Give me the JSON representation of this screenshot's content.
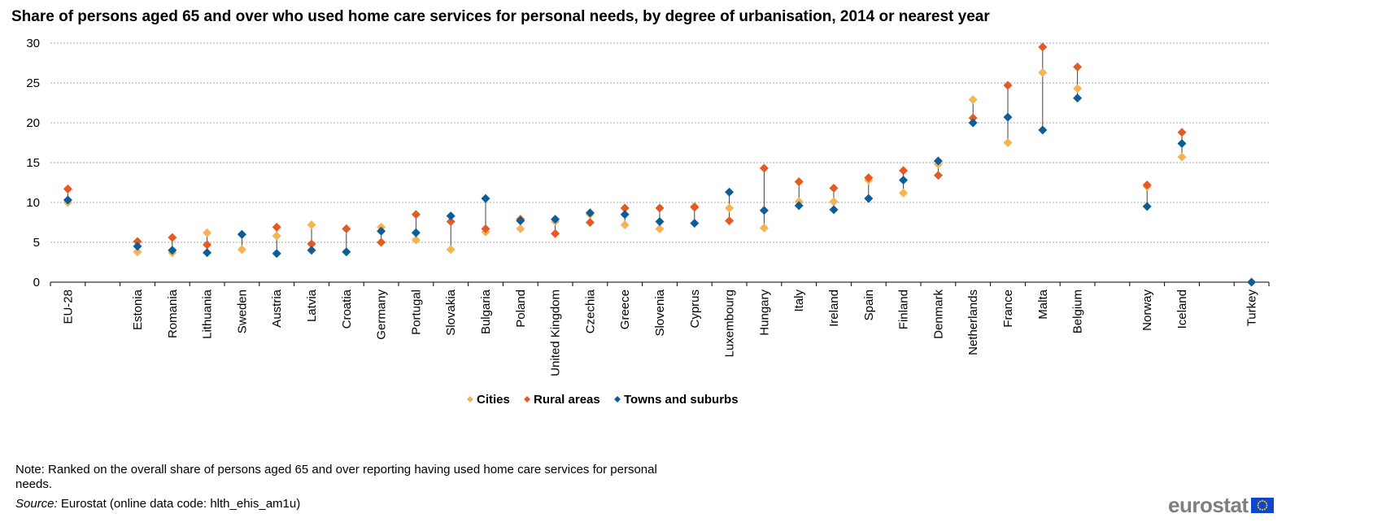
{
  "chart_data": {
    "type": "scatter",
    "title": "Share of persons aged 65 and over who used home care services for personal needs, by degree of urbanisation, 2014 or nearest year",
    "ylim": [
      0,
      30
    ],
    "yticks": [
      0,
      5,
      10,
      15,
      20,
      25,
      30
    ],
    "grid": true,
    "legend_position": "bottom",
    "categories": [
      "EU-28",
      "Estonia",
      "Romania",
      "Lithuania",
      "Sweden",
      "Austria",
      "Latvia",
      "Croatia",
      "Germany",
      "Portugal",
      "Slovakia",
      "Bulgaria",
      "Poland",
      "United Kingdom",
      "Czechia",
      "Greece",
      "Slovenia",
      "Cyprus",
      "Luxembourg",
      "Hungary",
      "Italy",
      "Ireland",
      "Spain",
      "Finland",
      "Denmark",
      "Netherlands",
      "France",
      "Malta",
      "Belgium",
      "Norway",
      "Iceland",
      "Turkey"
    ],
    "groups": [
      [
        0
      ],
      [
        1,
        28
      ],
      [
        29,
        30
      ],
      [
        31
      ]
    ],
    "series": [
      {
        "name": "Cities",
        "color": "#f5b354",
        "values": [
          10.0,
          3.8,
          3.7,
          6.2,
          4.1,
          5.8,
          7.2,
          6.7,
          6.9,
          5.3,
          4.1,
          6.3,
          6.7,
          7.6,
          8.5,
          7.2,
          6.7,
          9.5,
          9.3,
          6.8,
          10.1,
          10.1,
          12.8,
          11.2,
          14.8,
          22.9,
          17.5,
          26.3,
          24.3,
          12.0,
          15.7,
          null
        ]
      },
      {
        "name": "Rural areas",
        "color": "#e35a24",
        "values": [
          11.7,
          5.1,
          5.6,
          4.7,
          6.0,
          6.9,
          4.8,
          6.7,
          5.0,
          8.5,
          7.6,
          6.7,
          7.9,
          6.1,
          7.5,
          9.3,
          9.3,
          9.4,
          7.7,
          14.3,
          12.6,
          11.8,
          13.1,
          14.0,
          13.4,
          20.6,
          24.7,
          29.5,
          27.0,
          12.2,
          18.8,
          null
        ]
      },
      {
        "name": "Towns and suburbs",
        "color": "#0d5d97",
        "values": [
          10.3,
          4.5,
          4.0,
          3.7,
          6.0,
          3.6,
          4.0,
          3.8,
          6.4,
          6.2,
          8.3,
          10.5,
          7.7,
          7.9,
          8.7,
          8.5,
          7.6,
          7.4,
          11.3,
          9.0,
          9.6,
          9.1,
          10.5,
          12.8,
          15.2,
          20.0,
          20.7,
          19.1,
          23.1,
          9.5,
          17.4,
          0.0
        ]
      }
    ]
  },
  "note": "Note: Ranked on the overall share of persons aged 65 and over reporting having used home care services for personal needs.",
  "source": {
    "label": "Source:",
    "text": "Eurostat (online data code: hlth_ehis_am1u)"
  },
  "logo": {
    "text": "eurostat"
  }
}
